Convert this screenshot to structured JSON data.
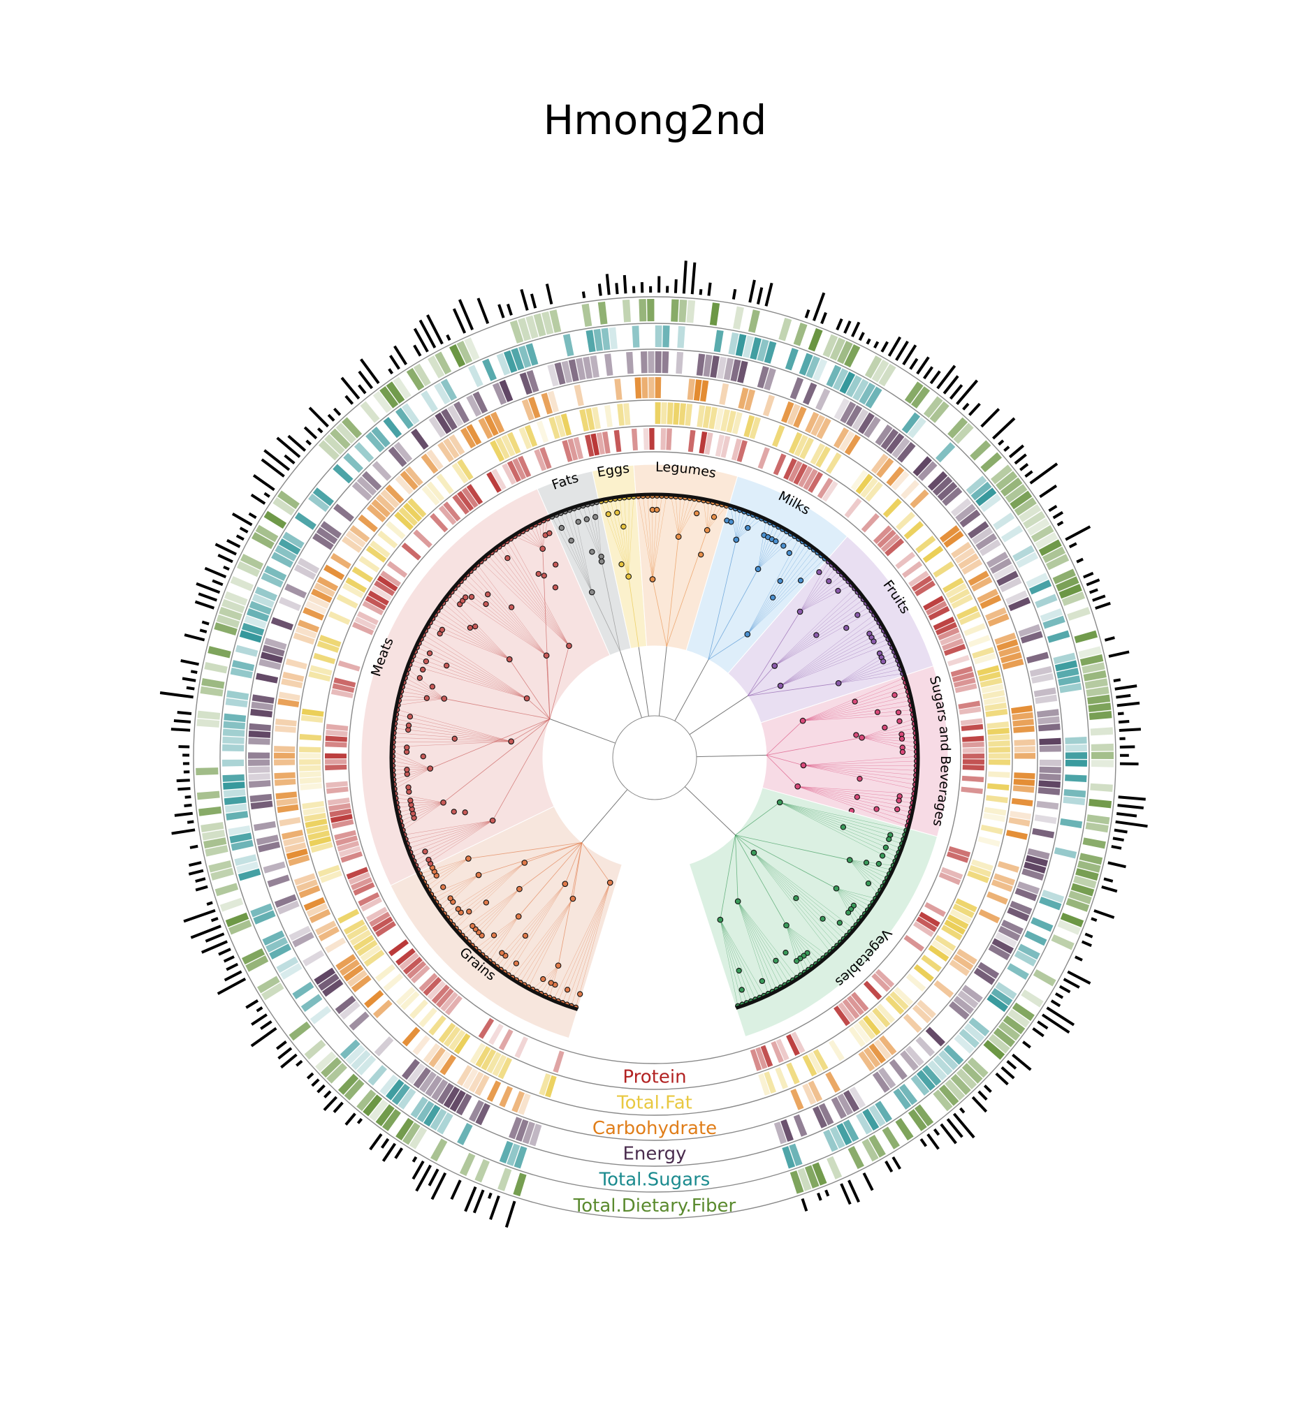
{
  "title": "Hmong2nd",
  "segments": [
    {
      "name": "Grains",
      "color": "#e07a4a",
      "fill": "#f7e6dd",
      "count": 46,
      "internal": 9
    },
    {
      "name": "Meats",
      "color": "#c85a58",
      "fill": "#f7e2e1",
      "count": 90,
      "internal": 10
    },
    {
      "name": "Fats",
      "color": "#8a8a8a",
      "fill": "#e2e4e5",
      "count": 11,
      "internal": 2
    },
    {
      "name": "Eggs",
      "color": "#e8c440",
      "fill": "#fbf1cc",
      "count": 8,
      "internal": 1
    },
    {
      "name": "Legumes",
      "color": "#e8904a",
      "fill": "#fbe8d8",
      "count": 20,
      "internal": 3
    },
    {
      "name": "Milks",
      "color": "#4a90d0",
      "fill": "#deeefa",
      "count": 24,
      "internal": 3
    },
    {
      "name": "Fruits",
      "color": "#8a5aaa",
      "fill": "#e9dff2",
      "count": 30,
      "internal": 4
    },
    {
      "name": "Sugars and Beverages",
      "color": "#d84a7a",
      "fill": "#f7dbe5",
      "count": 33,
      "internal": 4
    },
    {
      "name": "Vegetables",
      "color": "#3a9a5a",
      "fill": "#dbf0e2",
      "count": 55,
      "internal": 7
    }
  ],
  "rings": [
    {
      "name": "Protein",
      "color": "#b22222"
    },
    {
      "name": "Total.Fat",
      "color": "#e8c840"
    },
    {
      "name": "Carbohydrate",
      "color": "#e07e1a"
    },
    {
      "name": "Energy",
      "color": "#4a2c4e"
    },
    {
      "name": "Total.Sugars",
      "color": "#1a8a8e"
    },
    {
      "name": "Total.Dietary.Fiber",
      "color": "#5a8a2e"
    }
  ],
  "bar_color": "#000000"
}
